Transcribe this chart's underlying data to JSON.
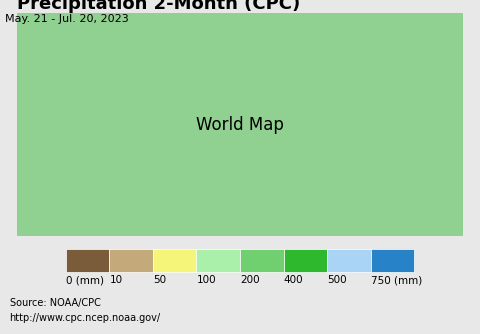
{
  "title": "Precipitation 2-Month (CPC)",
  "subtitle": "May. 21 - Jul. 20, 2023",
  "source_line1": "Source: NOAA/CPC",
  "source_line2": "http://www.cpc.ncep.noaa.gov/",
  "colorbar_colors": [
    "#7a5c3a",
    "#c4a97a",
    "#f5f57a",
    "#aaf0aa",
    "#70d070",
    "#2db82d",
    "#aad4f5",
    "#2882c8"
  ],
  "colorbar_labels": [
    "0 (mm)",
    "10",
    "50",
    "100",
    "200",
    "400",
    "500",
    "750 (mm)"
  ],
  "ocean_color": "#c8f0f0",
  "fig_bg_color": "#e8e8e8",
  "title_fontsize": 13,
  "subtitle_fontsize": 8,
  "source_fontsize": 7,
  "label_fontsize": 7.5
}
